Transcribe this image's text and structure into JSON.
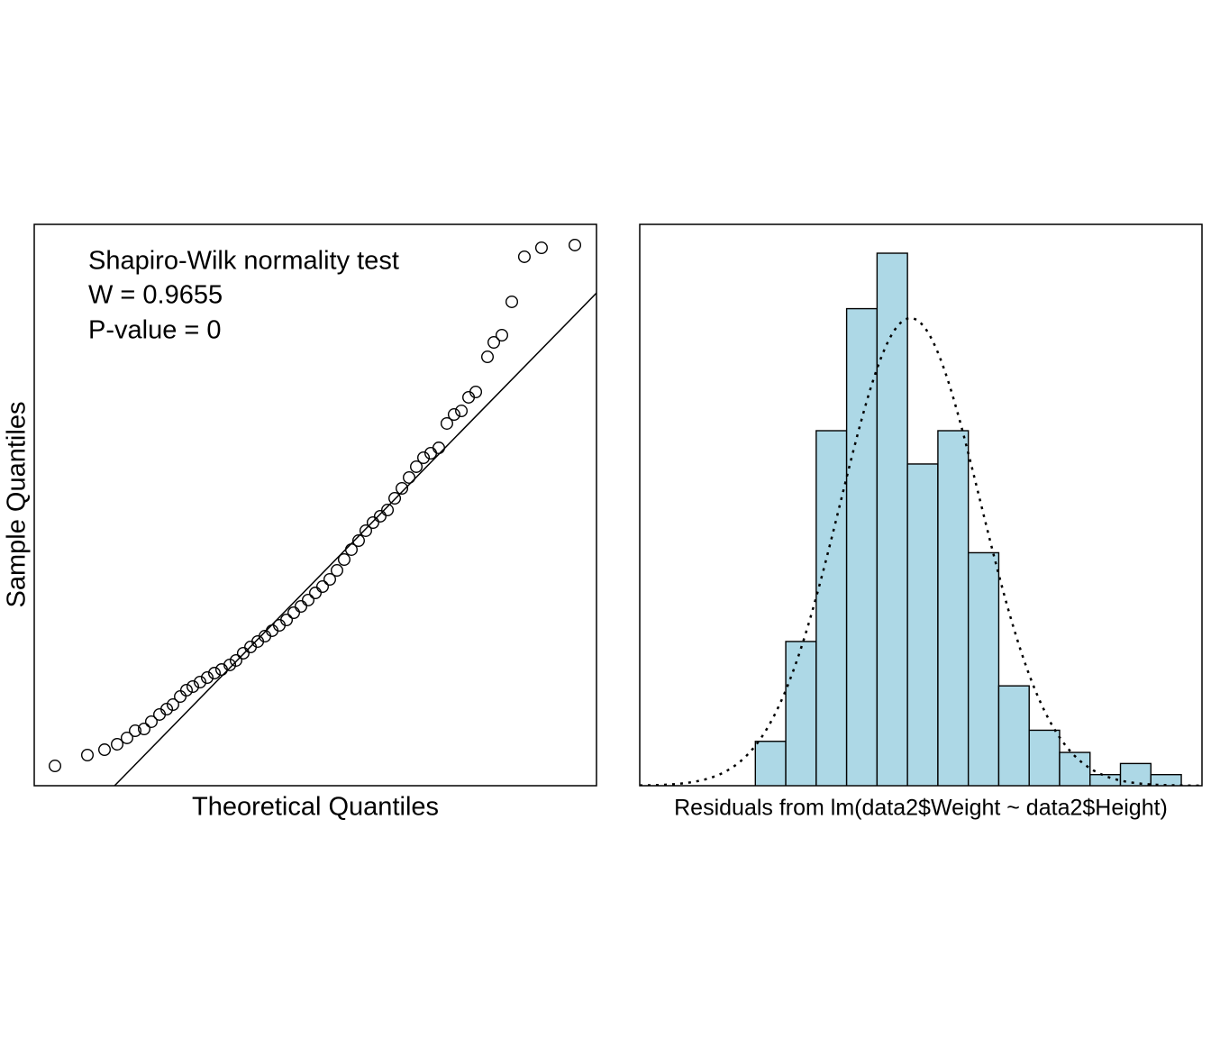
{
  "chart_data": [
    {
      "type": "qq",
      "annotations": [
        "Shapiro-Wilk normality test",
        "W = 0.9655",
        "P-value = 0"
      ],
      "x_label": "Theoretical Quantiles",
      "y_label": "Sample Quantiles",
      "x": [
        -2.964,
        -2.595,
        -2.4,
        -2.256,
        -2.144,
        -2.051,
        -1.949,
        -1.867,
        -1.774,
        -1.692,
        -1.621,
        -1.538,
        -1.467,
        -1.395,
        -1.313,
        -1.231,
        -1.149,
        -1.067,
        -0.974,
        -0.903,
        -0.821,
        -0.738,
        -0.656,
        -0.574,
        -0.492,
        -0.41,
        -0.328,
        -0.246,
        -0.164,
        -0.082,
        0,
        0.082,
        0.164,
        0.246,
        0.328,
        0.41,
        0.492,
        0.574,
        0.656,
        0.738,
        0.821,
        0.903,
        0.985,
        1.067,
        1.149,
        1.231,
        1.313,
        1.405,
        1.497,
        1.579,
        1.662,
        1.744,
        1.826,
        1.959,
        2.031,
        2.123,
        2.236,
        2.379,
        2.574,
        2.954
      ],
      "values": [
        -2.253,
        -2.118,
        -2.051,
        -1.983,
        -1.904,
        -1.815,
        -1.792,
        -1.702,
        -1.612,
        -1.545,
        -1.489,
        -1.388,
        -1.309,
        -1.264,
        -1.208,
        -1.152,
        -1.096,
        -1.051,
        -0.994,
        -0.938,
        -0.848,
        -0.77,
        -0.702,
        -0.635,
        -0.567,
        -0.5,
        -0.433,
        -0.343,
        -0.264,
        -0.185,
        -0.096,
        -0.017,
        0.073,
        0.185,
        0.32,
        0.444,
        0.556,
        0.68,
        0.781,
        0.86,
        0.938,
        1.084,
        1.208,
        1.343,
        1.478,
        1.59,
        1.646,
        1.713,
        2.017,
        2.129,
        2.174,
        2.343,
        2.41,
        2.848,
        3.028,
        3.118,
        3.534,
        4.096,
        4.208,
        4.242
      ],
      "line": {
        "intercept": 0.06,
        "slope": 1.12
      },
      "xlim": [
        -3.2,
        3.2
      ],
      "ylim": [
        -2.5,
        4.5
      ]
    },
    {
      "type": "histogram",
      "x_label": "Residuals from lm(data2$Weight ~ data2$Height)",
      "bins": [
        -25,
        -20,
        -15,
        -10,
        -5,
        0,
        5,
        10,
        15,
        20,
        25,
        30,
        35,
        40,
        45
      ],
      "values": [
        4,
        13,
        32,
        43,
        48,
        29,
        32,
        21,
        9,
        5,
        3,
        1,
        2,
        1
      ],
      "color": "#add8e6",
      "normal_curve": {
        "mean": 0.5,
        "sd": 11.5
      },
      "xlim": [
        -44,
        48.4
      ],
      "ylim": [
        0,
        50.6
      ]
    }
  ]
}
